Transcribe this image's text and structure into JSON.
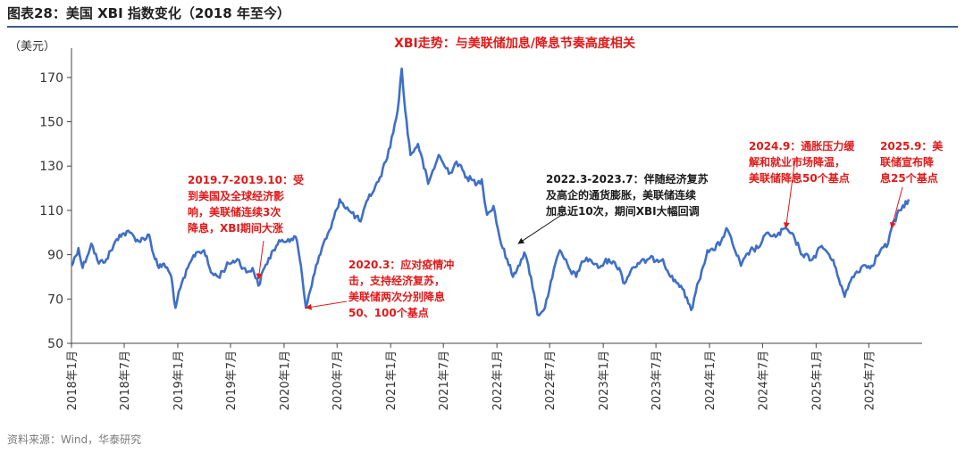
{
  "figure": {
    "title": "图表28：美国 XBI 指数变化（2018 年至今）",
    "source": "资料来源：Wind，华泰研究"
  },
  "colors": {
    "line": "#3f6fc6",
    "annotation_red": "#e01919",
    "annotation_black": "#1a1a1a",
    "axis": "#444444"
  },
  "chart_data": {
    "type": "line",
    "title": "XBI走势：与美联储加息/降息节奏高度相关",
    "ylabel": "（美元）",
    "xlabel": "",
    "ylim": [
      50,
      180
    ],
    "yticks": [
      50,
      70,
      90,
      110,
      130,
      150,
      170
    ],
    "xlim": [
      "2018-01-01",
      "2025-12-31"
    ],
    "grid": false,
    "legend": "none",
    "xticks": [
      {
        "date": "2018-01-01",
        "label": "2018年1月"
      },
      {
        "date": "2018-07-01",
        "label": "2018年7月"
      },
      {
        "date": "2019-01-01",
        "label": "2019年1月"
      },
      {
        "date": "2019-07-01",
        "label": "2019年7月"
      },
      {
        "date": "2020-01-01",
        "label": "2020年1月"
      },
      {
        "date": "2020-07-01",
        "label": "2020年7月"
      },
      {
        "date": "2021-01-01",
        "label": "2021年1月"
      },
      {
        "date": "2021-07-01",
        "label": "2021年7月"
      },
      {
        "date": "2022-01-01",
        "label": "2022年1月"
      },
      {
        "date": "2022-07-01",
        "label": "2022年7月"
      },
      {
        "date": "2023-01-01",
        "label": "2023年1月"
      },
      {
        "date": "2023-07-01",
        "label": "2023年7月"
      },
      {
        "date": "2024-01-01",
        "label": "2024年1月"
      },
      {
        "date": "2024-07-01",
        "label": "2024年7月"
      },
      {
        "date": "2025-01-01",
        "label": "2025年1月"
      },
      {
        "date": "2025-07-01",
        "label": "2025年7月"
      }
    ],
    "series": [
      {
        "name": "",
        "points": [
          [
            "2018-01-02",
            85
          ],
          [
            "2018-01-25",
            93
          ],
          [
            "2018-02-08",
            84
          ],
          [
            "2018-03-10",
            95
          ],
          [
            "2018-04-05",
            86
          ],
          [
            "2018-05-01",
            88
          ],
          [
            "2018-06-15",
            99
          ],
          [
            "2018-07-20",
            100
          ],
          [
            "2018-08-20",
            96
          ],
          [
            "2018-09-25",
            99
          ],
          [
            "2018-10-10",
            90
          ],
          [
            "2018-10-28",
            84
          ],
          [
            "2018-11-15",
            86
          ],
          [
            "2018-12-10",
            80
          ],
          [
            "2018-12-24",
            66
          ],
          [
            "2019-01-10",
            75
          ],
          [
            "2019-02-15",
            87
          ],
          [
            "2019-03-05",
            91
          ],
          [
            "2019-04-01",
            92
          ],
          [
            "2019-04-25",
            82
          ],
          [
            "2019-05-20",
            80
          ],
          [
            "2019-06-25",
            86
          ],
          [
            "2019-07-25",
            88
          ],
          [
            "2019-08-25",
            82
          ],
          [
            "2019-09-15",
            84
          ],
          [
            "2019-10-05",
            76
          ],
          [
            "2019-10-25",
            84
          ],
          [
            "2019-11-25",
            92
          ],
          [
            "2019-12-20",
            96
          ],
          [
            "2020-01-15",
            97
          ],
          [
            "2020-02-10",
            98
          ],
          [
            "2020-02-28",
            85
          ],
          [
            "2020-03-16",
            66
          ],
          [
            "2020-04-10",
            80
          ],
          [
            "2020-05-15",
            95
          ],
          [
            "2020-06-10",
            102
          ],
          [
            "2020-07-10",
            115
          ],
          [
            "2020-08-10",
            110
          ],
          [
            "2020-09-20",
            105
          ],
          [
            "2020-10-15",
            115
          ],
          [
            "2020-11-20",
            123
          ],
          [
            "2020-12-15",
            132
          ],
          [
            "2021-01-10",
            145
          ],
          [
            "2021-01-25",
            155
          ],
          [
            "2021-02-08",
            174
          ],
          [
            "2021-02-20",
            155
          ],
          [
            "2021-03-10",
            135
          ],
          [
            "2021-04-05",
            140
          ],
          [
            "2021-05-10",
            122
          ],
          [
            "2021-06-15",
            135
          ],
          [
            "2021-07-05",
            130
          ],
          [
            "2021-07-25",
            127
          ],
          [
            "2021-08-15",
            132
          ],
          [
            "2021-09-20",
            125
          ],
          [
            "2021-10-25",
            122
          ],
          [
            "2021-11-10",
            124
          ],
          [
            "2021-11-28",
            108
          ],
          [
            "2021-12-20",
            112
          ],
          [
            "2022-01-15",
            95
          ],
          [
            "2022-02-05",
            88
          ],
          [
            "2022-02-25",
            80
          ],
          [
            "2022-03-15",
            85
          ],
          [
            "2022-04-05",
            91
          ],
          [
            "2022-04-28",
            80
          ],
          [
            "2022-05-20",
            63
          ],
          [
            "2022-06-15",
            66
          ],
          [
            "2022-07-05",
            78
          ],
          [
            "2022-08-05",
            92
          ],
          [
            "2022-09-05",
            84
          ],
          [
            "2022-09-30",
            80
          ],
          [
            "2022-10-20",
            87
          ],
          [
            "2022-11-15",
            88
          ],
          [
            "2022-12-15",
            84
          ],
          [
            "2023-01-20",
            88
          ],
          [
            "2023-02-25",
            84
          ],
          [
            "2023-03-15",
            77
          ],
          [
            "2023-04-10",
            84
          ],
          [
            "2023-05-05",
            86
          ],
          [
            "2023-06-05",
            88
          ],
          [
            "2023-07-25",
            88
          ],
          [
            "2023-08-20",
            80
          ],
          [
            "2023-09-25",
            76
          ],
          [
            "2023-10-20",
            68
          ],
          [
            "2023-10-30",
            65
          ],
          [
            "2023-11-25",
            78
          ],
          [
            "2023-12-25",
            92
          ],
          [
            "2024-01-15",
            92
          ],
          [
            "2024-02-10",
            96
          ],
          [
            "2024-02-28",
            102
          ],
          [
            "2024-03-20",
            95
          ],
          [
            "2024-04-18",
            85
          ],
          [
            "2024-05-20",
            92
          ],
          [
            "2024-06-15",
            93
          ],
          [
            "2024-07-20",
            100
          ],
          [
            "2024-08-15",
            98
          ],
          [
            "2024-09-19",
            102
          ],
          [
            "2024-10-20",
            97
          ],
          [
            "2024-11-15",
            90
          ],
          [
            "2024-12-20",
            88
          ],
          [
            "2025-01-20",
            94
          ],
          [
            "2025-02-15",
            90
          ],
          [
            "2025-03-10",
            84
          ],
          [
            "2025-04-09",
            71
          ],
          [
            "2025-05-05",
            80
          ],
          [
            "2025-06-10",
            85
          ],
          [
            "2025-07-10",
            85
          ],
          [
            "2025-08-10",
            92
          ],
          [
            "2025-09-05",
            95
          ],
          [
            "2025-09-17",
            102
          ],
          [
            "2025-10-15",
            110
          ],
          [
            "2025-11-15",
            115
          ]
        ]
      }
    ],
    "annotations": [
      {
        "lines": [
          "2019.7-2019.10：受",
          "到美国及全球经济影",
          "响，美联储连续3次",
          "降息，XBI期间大涨"
        ],
        "color": "red",
        "target": [
          "2019-10-05",
          79
        ]
      },
      {
        "lines": [
          "2020.3：应对疫情冲",
          "击，支持经济复苏，",
          "美联储两次分别降息",
          "50、100个基点"
        ],
        "color": "red",
        "target": [
          "2020-03-16",
          66
        ]
      },
      {
        "lines": [
          "2022.3-2023.7：伴随经济复苏",
          "及高企的通货膨胀，美联储连续",
          "加息近10次，期间XBI大幅回调"
        ],
        "color": "black",
        "target": [
          "2022-03-15",
          95
        ]
      },
      {
        "lines": [
          "2024.9：通胀压力缓",
          "解和就业市场降温，",
          "美联储降息50个基点"
        ],
        "color": "red",
        "target": [
          "2024-09-19",
          102
        ]
      },
      {
        "lines": [
          "2025.9：美",
          "联储宣布降",
          "息25个基点"
        ],
        "color": "red",
        "target": [
          "2025-09-17",
          102
        ]
      }
    ]
  }
}
